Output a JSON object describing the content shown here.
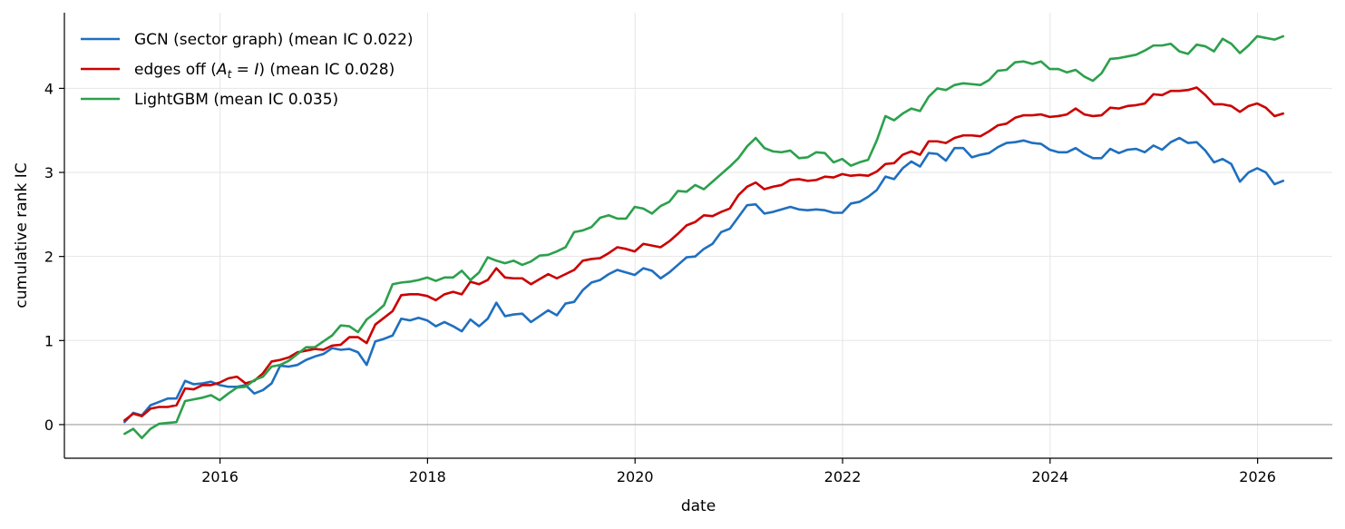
{
  "chart_data": {
    "type": "line",
    "title": "",
    "xlabel": "date",
    "ylabel": "cumulative rank IC",
    "xlim": [
      2014.5,
      2026.72
    ],
    "ylim": [
      -0.4,
      4.9
    ],
    "x_ticks": [
      2016,
      2018,
      2020,
      2022,
      2024,
      2026
    ],
    "x_tick_labels": [
      "2016",
      "2018",
      "2020",
      "2022",
      "2024",
      "2026"
    ],
    "y_ticks": [
      0,
      1,
      2,
      3,
      4
    ],
    "y_tick_labels": [
      "0",
      "1",
      "2",
      "3",
      "4"
    ],
    "grid": true,
    "zero_line": true,
    "legend": {
      "position": "top-left"
    },
    "x_start": 2015.08,
    "x_step": 0.08333,
    "series": [
      {
        "name": "GCN (sector graph)  (mean IC 0.022)",
        "color": "#1f6fbf",
        "values": [
          0.03,
          0.14,
          0.11,
          0.23,
          0.27,
          0.31,
          0.31,
          0.52,
          0.48,
          0.49,
          0.51,
          0.47,
          0.45,
          0.45,
          0.47,
          0.37,
          0.41,
          0.49,
          0.7,
          0.69,
          0.71,
          0.77,
          0.81,
          0.84,
          0.91,
          0.89,
          0.9,
          0.86,
          0.71,
          0.99,
          1.02,
          1.06,
          1.26,
          1.24,
          1.27,
          1.24,
          1.17,
          1.22,
          1.17,
          1.11,
          1.25,
          1.17,
          1.26,
          1.45,
          1.29,
          1.31,
          1.32,
          1.22,
          1.29,
          1.36,
          1.3,
          1.44,
          1.46,
          1.6,
          1.69,
          1.72,
          1.79,
          1.84,
          1.81,
          1.78,
          1.86,
          1.83,
          1.74,
          1.81,
          1.9,
          1.99,
          2.0,
          2.09,
          2.15,
          2.29,
          2.33,
          2.47,
          2.61,
          2.62,
          2.51,
          2.53,
          2.56,
          2.59,
          2.56,
          2.55,
          2.56,
          2.55,
          2.52,
          2.52,
          2.63,
          2.65,
          2.71,
          2.79,
          2.95,
          2.92,
          3.05,
          3.13,
          3.07,
          3.23,
          3.22,
          3.14,
          3.29,
          3.29,
          3.18,
          3.21,
          3.23,
          3.3,
          3.35,
          3.36,
          3.38,
          3.35,
          3.34,
          3.27,
          3.24,
          3.24,
          3.29,
          3.22,
          3.17,
          3.17,
          3.28,
          3.23,
          3.27,
          3.28,
          3.24,
          3.32,
          3.27,
          3.36,
          3.41,
          3.35,
          3.36,
          3.26,
          3.12,
          3.16,
          3.1,
          2.89,
          3.0,
          3.05,
          3.0,
          2.86,
          2.9
        ]
      },
      {
        "name": "edges off (A_t = I)  (mean IC 0.028)",
        "color": "#cc0000",
        "values": [
          0.05,
          0.13,
          0.1,
          0.19,
          0.21,
          0.21,
          0.23,
          0.43,
          0.42,
          0.47,
          0.47,
          0.5,
          0.55,
          0.57,
          0.49,
          0.52,
          0.61,
          0.75,
          0.77,
          0.8,
          0.86,
          0.88,
          0.9,
          0.89,
          0.94,
          0.95,
          1.04,
          1.04,
          0.97,
          1.19,
          1.27,
          1.35,
          1.54,
          1.55,
          1.55,
          1.53,
          1.48,
          1.55,
          1.58,
          1.55,
          1.7,
          1.67,
          1.72,
          1.86,
          1.75,
          1.74,
          1.74,
          1.67,
          1.73,
          1.79,
          1.74,
          1.79,
          1.84,
          1.95,
          1.97,
          1.98,
          2.04,
          2.11,
          2.09,
          2.06,
          2.15,
          2.13,
          2.11,
          2.18,
          2.27,
          2.37,
          2.41,
          2.49,
          2.48,
          2.53,
          2.57,
          2.73,
          2.83,
          2.88,
          2.8,
          2.83,
          2.85,
          2.91,
          2.92,
          2.9,
          2.91,
          2.95,
          2.94,
          2.98,
          2.96,
          2.97,
          2.96,
          3.01,
          3.1,
          3.11,
          3.21,
          3.25,
          3.21,
          3.37,
          3.37,
          3.35,
          3.41,
          3.44,
          3.44,
          3.43,
          3.49,
          3.56,
          3.58,
          3.65,
          3.68,
          3.68,
          3.69,
          3.66,
          3.67,
          3.69,
          3.76,
          3.69,
          3.67,
          3.68,
          3.77,
          3.76,
          3.79,
          3.8,
          3.82,
          3.93,
          3.92,
          3.97,
          3.97,
          3.98,
          4.01,
          3.92,
          3.81,
          3.81,
          3.79,
          3.72,
          3.79,
          3.82,
          3.77,
          3.67,
          3.7
        ]
      },
      {
        "name": "LightGBM  (mean IC 0.035)",
        "color": "#2ca04c",
        "values": [
          -0.11,
          -0.05,
          -0.16,
          -0.05,
          0.01,
          0.02,
          0.03,
          0.28,
          0.3,
          0.32,
          0.35,
          0.29,
          0.37,
          0.44,
          0.45,
          0.53,
          0.57,
          0.69,
          0.71,
          0.76,
          0.84,
          0.92,
          0.92,
          0.99,
          1.06,
          1.18,
          1.17,
          1.1,
          1.25,
          1.33,
          1.42,
          1.67,
          1.69,
          1.7,
          1.72,
          1.75,
          1.71,
          1.75,
          1.75,
          1.83,
          1.72,
          1.81,
          1.99,
          1.95,
          1.92,
          1.95,
          1.9,
          1.94,
          2.01,
          2.02,
          2.06,
          2.11,
          2.29,
          2.31,
          2.35,
          2.46,
          2.49,
          2.45,
          2.45,
          2.59,
          2.57,
          2.51,
          2.6,
          2.65,
          2.78,
          2.77,
          2.85,
          2.8,
          2.89,
          2.98,
          3.07,
          3.17,
          3.31,
          3.41,
          3.29,
          3.25,
          3.24,
          3.26,
          3.17,
          3.18,
          3.24,
          3.23,
          3.12,
          3.16,
          3.08,
          3.12,
          3.15,
          3.38,
          3.67,
          3.62,
          3.7,
          3.76,
          3.73,
          3.9,
          4.0,
          3.98,
          4.04,
          4.06,
          4.05,
          4.04,
          4.1,
          4.21,
          4.22,
          4.31,
          4.32,
          4.29,
          4.32,
          4.23,
          4.23,
          4.19,
          4.22,
          4.14,
          4.09,
          4.18,
          4.35,
          4.36,
          4.38,
          4.4,
          4.45,
          4.51,
          4.51,
          4.53,
          4.44,
          4.41,
          4.52,
          4.5,
          4.44,
          4.59,
          4.53,
          4.42,
          4.51,
          4.62,
          4.6,
          4.58,
          4.62
        ]
      }
    ]
  }
}
